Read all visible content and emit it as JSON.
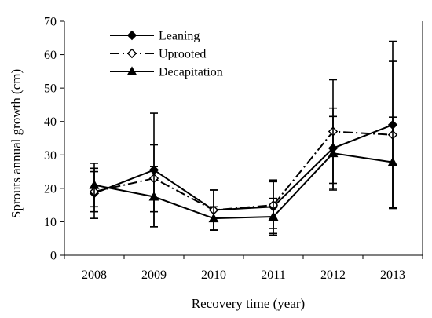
{
  "chart_data": {
    "type": "line",
    "title": "",
    "xlabel": "Recovery time (year)",
    "ylabel": "Sprouts annual growth (cm)",
    "categories": [
      "2008",
      "2009",
      "2010",
      "2011",
      "2012",
      "2013"
    ],
    "ylim": [
      0,
      70
    ],
    "yticks": [
      0,
      10,
      20,
      30,
      40,
      50,
      60,
      70
    ],
    "grid": false,
    "legend_position": "top-left",
    "series": [
      {
        "name": "Leaning",
        "marker": "filled-diamond",
        "line_style": "solid",
        "values": [
          18.5,
          25.5,
          13.5,
          14.5,
          32,
          39
        ],
        "errors": [
          7.5,
          17,
          6,
          8,
          12,
          25
        ]
      },
      {
        "name": "Uprooted",
        "marker": "open-diamond",
        "line_style": "dash-dot",
        "values": [
          19,
          23,
          13.5,
          15,
          37,
          36
        ],
        "errors": [
          6,
          10,
          6,
          7,
          15.5,
          22
        ]
      },
      {
        "name": "Decapitation",
        "marker": "filled-triangle",
        "line_style": "solid",
        "values": [
          21,
          17.5,
          11,
          11.5,
          30.5,
          27.8
        ],
        "errors": [
          6.5,
          9,
          3.5,
          5.5,
          11,
          13.5
        ]
      }
    ],
    "colors": {
      "axis": "#000000",
      "series": "#000000",
      "background": "#ffffff"
    }
  }
}
